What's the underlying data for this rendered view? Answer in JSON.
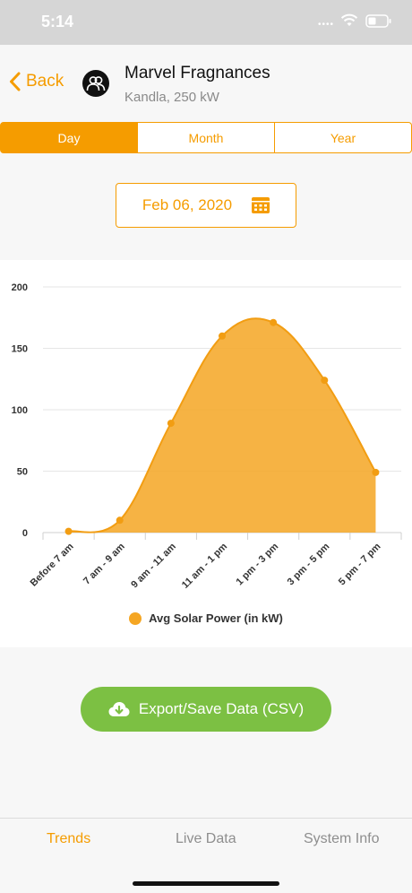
{
  "status": {
    "time": "5:14"
  },
  "header": {
    "back_label": "Back",
    "site_name": "Marvel Fragnances",
    "site_sub": "Kandla, 250 kW"
  },
  "segments": [
    {
      "label": "Day",
      "active": true
    },
    {
      "label": "Month",
      "active": false
    },
    {
      "label": "Year",
      "active": false
    }
  ],
  "date": {
    "value": "Feb 06, 2020"
  },
  "colors": {
    "accent": "#f59c00",
    "area": "#f5a623",
    "export": "#7cc043"
  },
  "chart_data": {
    "type": "area",
    "categories": [
      "Before 7 am",
      "7 am - 9 am",
      "9 am - 11 am",
      "11 am - 1 pm",
      "1 pm - 3 pm",
      "3 pm - 5 pm",
      "5 pm - 7 pm"
    ],
    "series": [
      {
        "name": "Avg Solar Power (in kW)",
        "values": [
          1,
          10,
          89,
          160,
          171,
          124,
          49
        ]
      }
    ],
    "yticks": [
      0,
      50,
      100,
      150,
      200
    ],
    "ylim": [
      0,
      200
    ],
    "grid": true,
    "legend": "bottom"
  },
  "export": {
    "label": "Export/Save Data (CSV)"
  },
  "tabs": [
    {
      "label": "Trends",
      "active": true
    },
    {
      "label": "Live Data",
      "active": false
    },
    {
      "label": "System Info",
      "active": false
    }
  ]
}
